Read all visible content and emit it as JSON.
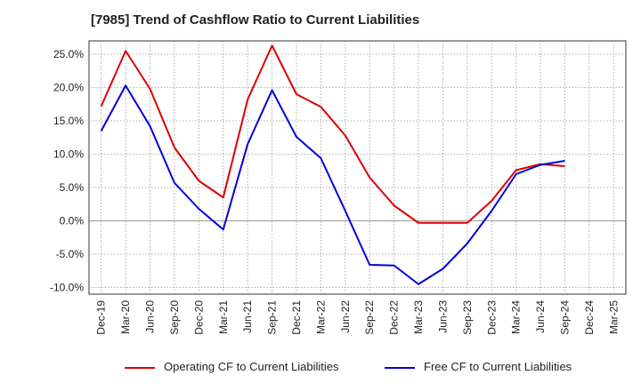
{
  "chart_data": {
    "type": "line",
    "title": "[7985]  Trend of Cashflow Ratio to Current Liabilities",
    "xlabel": "",
    "ylabel": "",
    "categories": [
      "Dec-19",
      "Mar-20",
      "Jun-20",
      "Sep-20",
      "Dec-20",
      "Mar-21",
      "Jun-21",
      "Sep-21",
      "Dec-21",
      "Mar-22",
      "Jun-22",
      "Sep-22",
      "Dec-22",
      "Mar-23",
      "Jun-23",
      "Sep-23",
      "Dec-23",
      "Mar-24",
      "Jun-24",
      "Sep-24",
      "Dec-24",
      "Mar-25"
    ],
    "y_ticks": [
      -10.0,
      -5.0,
      0.0,
      5.0,
      10.0,
      15.0,
      20.0,
      25.0
    ],
    "y_tick_format": "percent_1dp",
    "ylim": [
      -11.0,
      27.0
    ],
    "grid": true,
    "legend_position": "bottom",
    "series": [
      {
        "name": "Operating CF to Current Liabilities",
        "color": "#dd0000",
        "values": [
          17.2,
          25.5,
          19.8,
          11.0,
          6.0,
          3.5,
          18.2,
          26.3,
          19.0,
          17.1,
          12.8,
          6.5,
          2.3,
          -0.3,
          -0.3,
          -0.3,
          3.0,
          7.6,
          8.5,
          8.2,
          null,
          null
        ]
      },
      {
        "name": "Free CF to Current Liabilities",
        "color": "#0000dd",
        "values": [
          13.5,
          20.3,
          14.2,
          5.7,
          1.8,
          -1.3,
          11.5,
          19.6,
          12.6,
          9.4,
          1.5,
          -6.6,
          -6.7,
          -9.5,
          -7.2,
          -3.4,
          1.5,
          7.0,
          8.4,
          9.0,
          null,
          null
        ]
      }
    ]
  }
}
